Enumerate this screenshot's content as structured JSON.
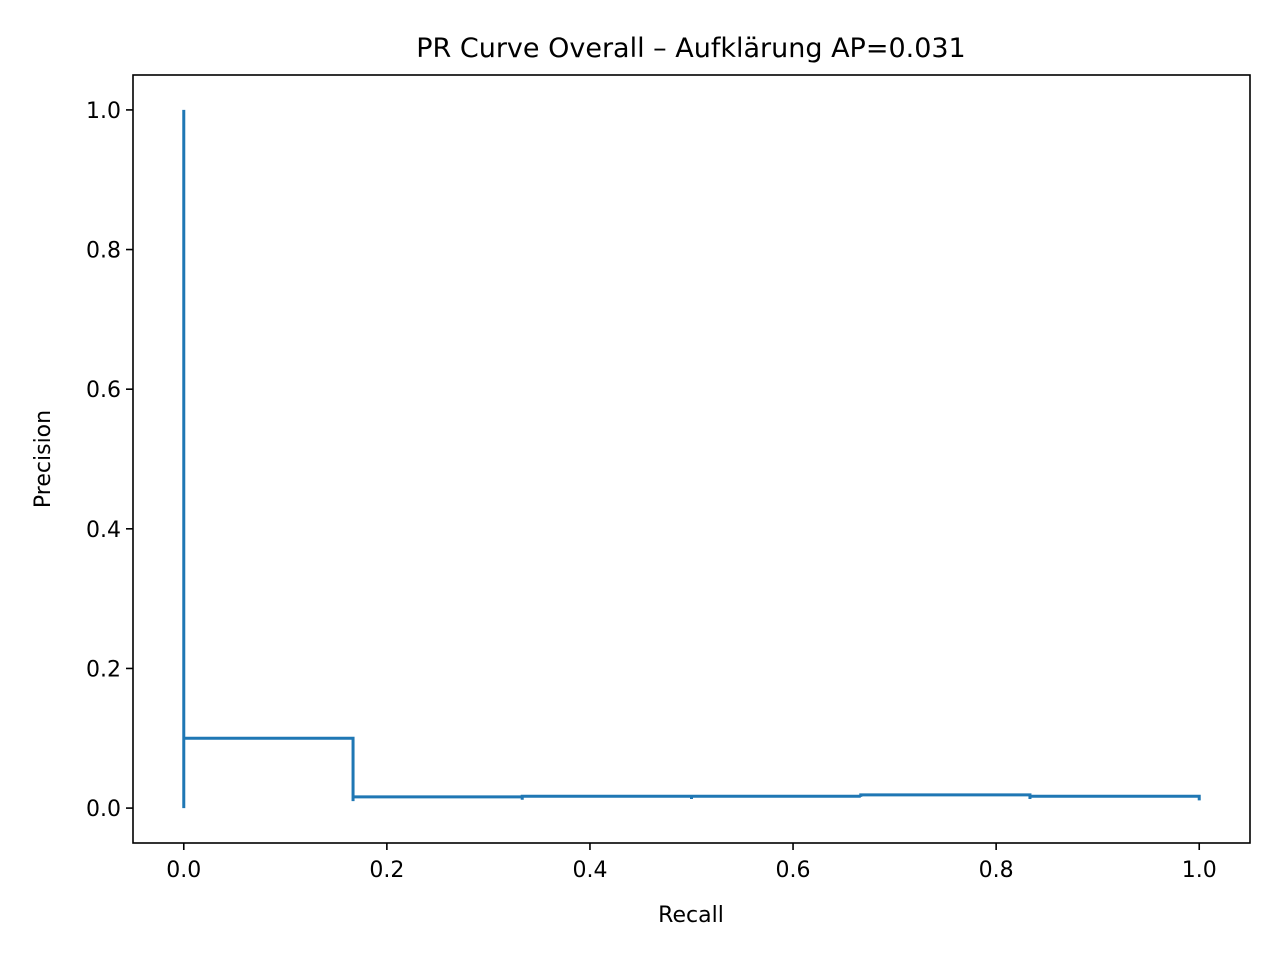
{
  "chart_data": {
    "type": "line",
    "title": "PR Curve Overall – Aufklärung  AP=0.031",
    "xlabel": "Recall",
    "ylabel": "Precision",
    "xlim": [
      -0.05,
      1.05
    ],
    "ylim": [
      -0.05,
      1.05
    ],
    "xticks": [
      0.0,
      0.2,
      0.4,
      0.6,
      0.8,
      1.0
    ],
    "xtick_labels": [
      "0.0",
      "0.2",
      "0.4",
      "0.6",
      "0.8",
      "1.0"
    ],
    "yticks": [
      0.0,
      0.2,
      0.4,
      0.6,
      0.8,
      1.0
    ],
    "ytick_labels": [
      "0.0",
      "0.2",
      "0.4",
      "0.6",
      "0.8",
      "1.0"
    ],
    "grid": false,
    "step": "post",
    "series": [
      {
        "color": "#1f77b4",
        "x": [
          0.0,
          0.0,
          0.0,
          0.1667,
          0.1667,
          0.1667,
          0.3333,
          0.3333,
          0.3333,
          0.5,
          0.5,
          0.5,
          0.6667,
          0.6667,
          0.6667,
          0.8333,
          0.8333,
          0.8333,
          1.0,
          1.0
        ],
        "y": [
          1.0,
          0.0,
          0.1,
          0.1,
          0.01,
          0.016,
          0.016,
          0.012,
          0.017,
          0.017,
          0.013,
          0.017,
          0.017,
          0.016,
          0.019,
          0.019,
          0.013,
          0.017,
          0.017,
          0.011
        ]
      }
    ]
  }
}
